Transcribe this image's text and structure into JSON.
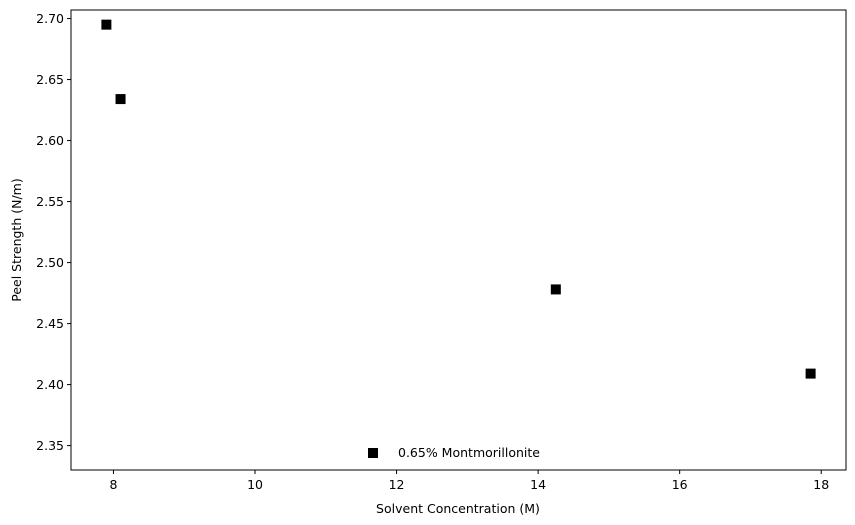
{
  "chart_data": {
    "type": "scatter",
    "title": "",
    "xlabel": "Solvent Concentration (M)",
    "ylabel": "Peel Strength (N/m)",
    "xlim": [
      7.4,
      18.35
    ],
    "ylim": [
      2.33,
      2.707
    ],
    "xticks": [
      8,
      10,
      12,
      14,
      16,
      18
    ],
    "yticks": [
      2.35,
      2.4,
      2.45,
      2.5,
      2.55,
      2.6,
      2.65,
      2.7
    ],
    "xtick_labels": [
      "8",
      "10",
      "12",
      "14",
      "16",
      "18"
    ],
    "ytick_labels": [
      "2.35",
      "2.40",
      "2.45",
      "2.50",
      "2.55",
      "2.60",
      "2.65",
      "2.70"
    ],
    "grid": false,
    "legend_position": "bottom-center",
    "marker": "square",
    "marker_color": "#000000",
    "series": [
      {
        "name": "0.65% Montmorillonite",
        "x": [
          7.9,
          8.1,
          14.25,
          17.85
        ],
        "y": [
          2.695,
          2.634,
          2.478,
          2.409
        ]
      }
    ]
  }
}
